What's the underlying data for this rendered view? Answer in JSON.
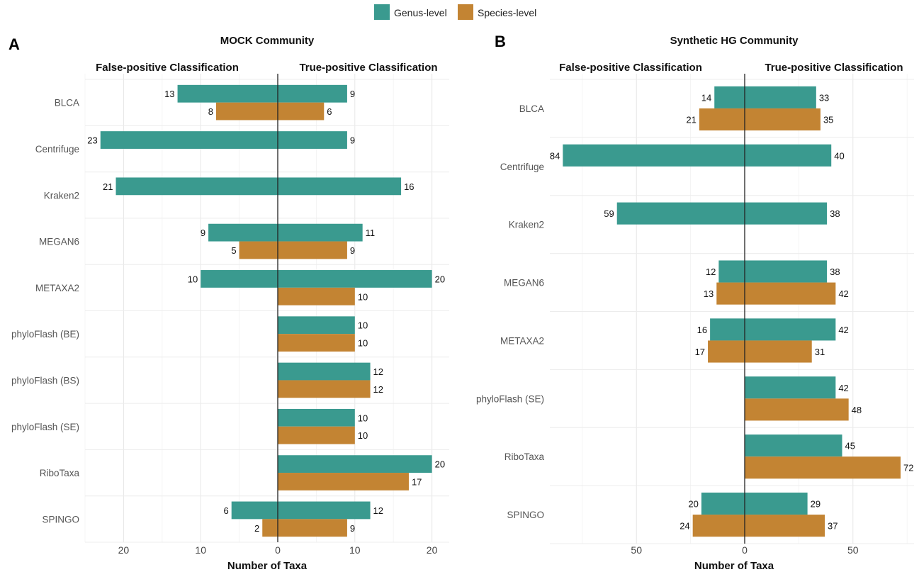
{
  "legend": [
    {
      "label": "Genus-level",
      "color": "#3a9a8f"
    },
    {
      "label": "Species-level",
      "color": "#c38433"
    }
  ],
  "xlabel": "Number of Taxa",
  "chart_data": [
    {
      "type": "bar",
      "panel_label": "A",
      "title": "MOCK Community",
      "left_header": "False-positive Classification",
      "right_header": "True-positive Classification",
      "xlim": [
        -25,
        22
      ],
      "xticks": [
        -20,
        -10,
        0,
        10,
        20
      ],
      "xtick_labels": [
        "20",
        "10",
        "0",
        "10",
        "20"
      ],
      "categories": [
        "BLCA",
        "Centrifuge",
        "Kraken2",
        "MEGAN6",
        "METAXA2",
        "phyloFlash (BE)",
        "phyloFlash (BS)",
        "phyloFlash (SE)",
        "RiboTaxa",
        "SPINGO"
      ],
      "series": [
        {
          "name": "Genus-level",
          "false_positive": [
            13,
            23,
            21,
            9,
            10,
            null,
            null,
            null,
            null,
            6
          ],
          "true_positive": [
            9,
            9,
            16,
            11,
            20,
            10,
            12,
            10,
            20,
            12
          ]
        },
        {
          "name": "Species-level",
          "false_positive": [
            8,
            null,
            null,
            5,
            null,
            null,
            null,
            null,
            null,
            2
          ],
          "true_positive": [
            6,
            null,
            null,
            9,
            10,
            10,
            12,
            10,
            17,
            9
          ]
        }
      ]
    },
    {
      "type": "bar",
      "panel_label": "B",
      "title": "Synthetic HG Community",
      "left_header": "False-positive Classification",
      "right_header": "True-positive Classification",
      "xlim": [
        -90,
        76
      ],
      "xticks": [
        -50,
        0,
        50
      ],
      "xtick_labels": [
        "50",
        "0",
        "50"
      ],
      "categories": [
        "BLCA",
        "Centrifuge",
        "Kraken2",
        "MEGAN6",
        "METAXA2",
        "phyloFlash (SE)",
        "RiboTaxa",
        "SPINGO"
      ],
      "series": [
        {
          "name": "Genus-level",
          "false_positive": [
            14,
            84,
            59,
            12,
            16,
            null,
            null,
            20
          ],
          "true_positive": [
            33,
            40,
            38,
            38,
            42,
            42,
            45,
            29
          ]
        },
        {
          "name": "Species-level",
          "false_positive": [
            21,
            null,
            null,
            13,
            17,
            null,
            null,
            24
          ],
          "true_positive": [
            35,
            null,
            null,
            42,
            31,
            48,
            72,
            37
          ]
        }
      ]
    }
  ]
}
